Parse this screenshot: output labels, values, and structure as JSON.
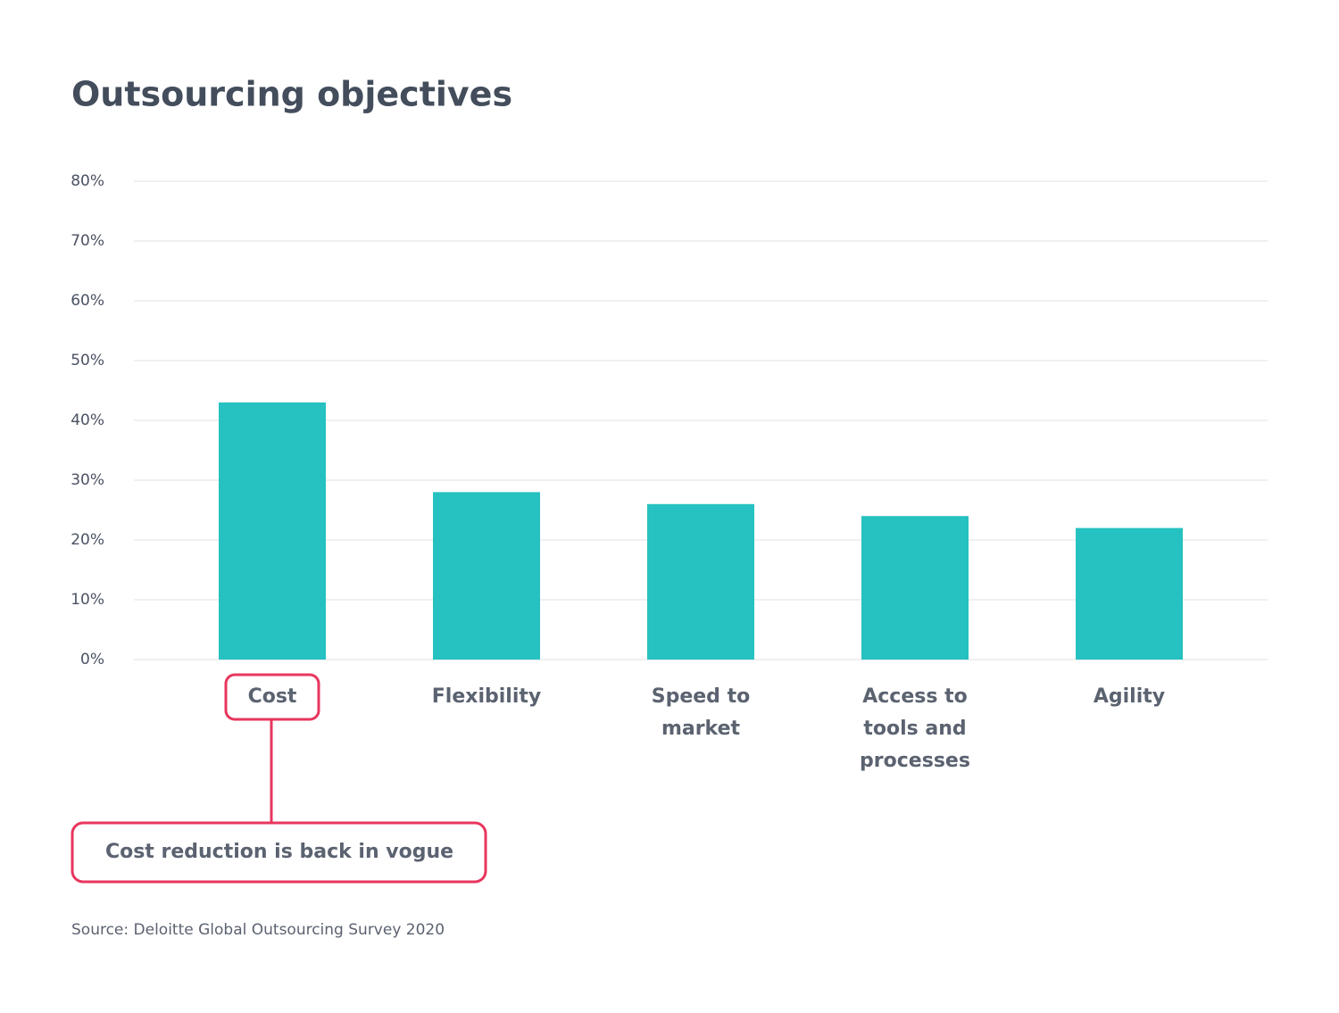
{
  "chart_data": {
    "type": "bar",
    "title": "Outsourcing objectives",
    "categories": [
      "Cost",
      "Flexibility",
      "Speed to\nmarket",
      "Access to\ntools and\nprocesses",
      "Agility"
    ],
    "values": [
      43,
      28,
      26,
      24,
      22
    ],
    "color": "#26c1c1",
    "ylim": [
      0,
      80
    ],
    "yticks": [
      {
        "value": 0,
        "label": "0%"
      },
      {
        "value": 10,
        "label": "10%"
      },
      {
        "value": 20,
        "label": "20%"
      },
      {
        "value": 30,
        "label": "30%"
      },
      {
        "value": 40,
        "label": "40%"
      },
      {
        "value": 50,
        "label": "50%"
      },
      {
        "value": 60,
        "label": "60%"
      },
      {
        "value": 70,
        "label": "70%"
      },
      {
        "value": 80,
        "label": "80%"
      }
    ],
    "grid": true,
    "annotation": "Cost reduction is back in vogue",
    "source": "Source: Deloitte Global Outsourcing Survey 2020"
  }
}
